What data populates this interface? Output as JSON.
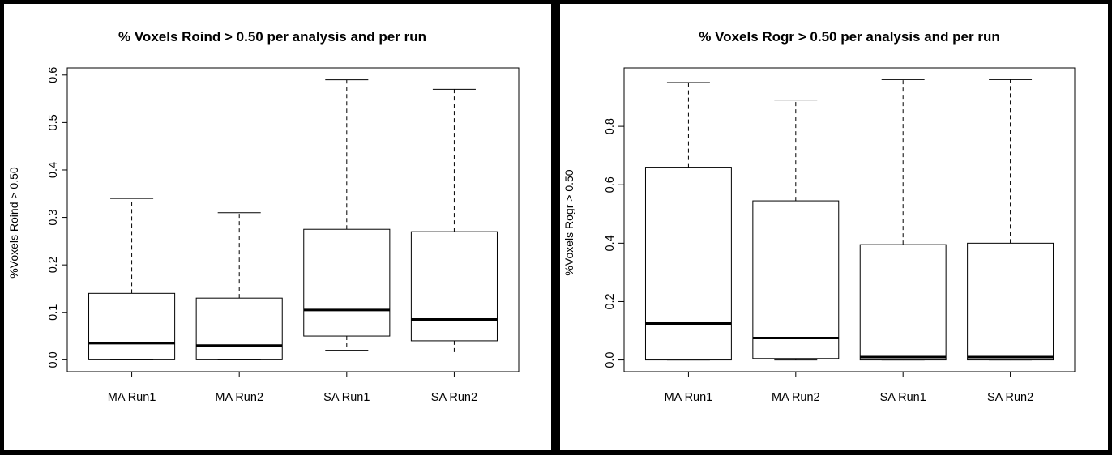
{
  "colors": {
    "background": "#000000",
    "panel": "#ffffff",
    "ink": "#000000"
  },
  "chart_data": [
    {
      "type": "box",
      "title": "% Voxels Roind > 0.50 per analysis and per run",
      "xlabel": "",
      "ylabel": "%Voxels Roind > 0.50",
      "ylim": [
        -0.025,
        0.615
      ],
      "yticks": [
        "0.0",
        "0.1",
        "0.2",
        "0.3",
        "0.4",
        "0.5",
        "0.6"
      ],
      "grid": false,
      "categories": [
        "MA Run1",
        "MA Run2",
        "SA Run1",
        "SA Run2"
      ],
      "boxes": [
        {
          "min": 0.0,
          "q1": 0.0,
          "median": 0.035,
          "q3": 0.14,
          "max": 0.34
        },
        {
          "min": 0.0,
          "q1": 0.0,
          "median": 0.03,
          "q3": 0.13,
          "max": 0.31
        },
        {
          "min": 0.02,
          "q1": 0.05,
          "median": 0.105,
          "q3": 0.275,
          "max": 0.59
        },
        {
          "min": 0.01,
          "q1": 0.04,
          "median": 0.085,
          "q3": 0.27,
          "max": 0.57
        }
      ]
    },
    {
      "type": "box",
      "title": "% Voxels Rogr > 0.50 per analysis and per run",
      "xlabel": "",
      "ylabel": "%Voxels Rogr > 0.50",
      "ylim": [
        -0.04,
        1.0
      ],
      "yticks": [
        "0.0",
        "0.2",
        "0.4",
        "0.6",
        "0.8"
      ],
      "grid": false,
      "categories": [
        "MA Run1",
        "MA Run2",
        "SA Run1",
        "SA Run2"
      ],
      "boxes": [
        {
          "min": 0.0,
          "q1": 0.0,
          "median": 0.125,
          "q3": 0.66,
          "max": 0.95
        },
        {
          "min": 0.0,
          "q1": 0.005,
          "median": 0.075,
          "q3": 0.545,
          "max": 0.89
        },
        {
          "min": 0.0,
          "q1": 0.0,
          "median": 0.01,
          "q3": 0.395,
          "max": 0.96
        },
        {
          "min": 0.0,
          "q1": 0.0,
          "median": 0.01,
          "q3": 0.4,
          "max": 0.96
        }
      ]
    }
  ]
}
